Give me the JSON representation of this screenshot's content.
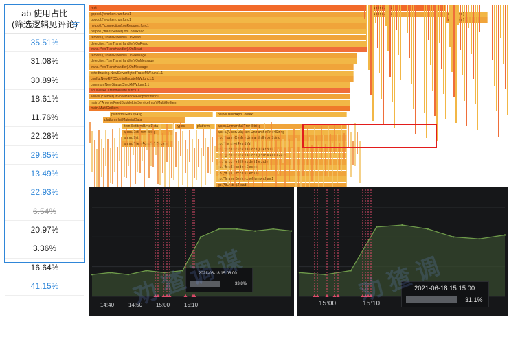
{
  "table": {
    "header_line1": "ab 使用占比",
    "header_line2": "(筛选逻辑见评论)",
    "rows": [
      {
        "value": "35.51%",
        "style": "blue"
      },
      {
        "value": "31.08%",
        "style": "normal"
      },
      {
        "value": "30.89%",
        "style": "normal"
      },
      {
        "value": "18.61%",
        "style": "normal"
      },
      {
        "value": "11.76%",
        "style": "normal"
      },
      {
        "value": "22.28%",
        "style": "normal"
      },
      {
        "value": "29.85%",
        "style": "blue"
      },
      {
        "value": "13.49%",
        "style": "blue"
      },
      {
        "value": "22.93%",
        "style": "blue"
      },
      {
        "value": "6.54%",
        "style": "strike"
      },
      {
        "value": "20.97%",
        "style": "normal"
      },
      {
        "value": "3.36%",
        "style": "normal"
      },
      {
        "value": "16.64%",
        "style": "normal"
      },
      {
        "value": "41.15%",
        "style": "blue"
      }
    ]
  },
  "flamegraph": {
    "frames": [
      "root",
      "gopool.(*worker).run.func1",
      "gopool.(*worker).run.func1",
      "netpoll.(*connection).onRequest.func1",
      "netpoll.(*transServer).onConnRead",
      "remote.(*TransPipeline).OnRead",
      "detection.(*svrTransHandler).OnRead",
      "trans.(*svrTransHandler).OnRead",
      "remote.(*TransPipeline).OnMessage",
      "detection.(*svrTransHandler).OnMessage",
      "trans.(*svrTransHandler).OnMessage",
      "bytedtracing.NewServerBytedTraceMW.func1.1",
      "config.NewRPCConfigUpdateMW.func1.1",
      "common.NewStatusCheckMW.func1.1",
      "acl.NewACLMiddleware.func1.1",
      "server.(*server).invokeHandleEndpoint.func1",
      "main.(*AmemeFeedBubbleLiteServiceImpl).MultiGetItem",
      "main.MultiGetItem",
      "platform.GetKeyAsg",
      "platform.InitMaterialData",
      "item.SetItemBaseData",
      "ajson.GetFromString",
      "ajson.Get",
      "ajson.(*ItemAdapter).Decode",
      "helper.BuildAppContext",
      "ajson.UnmarshalFromString",
      "ajson.(*JsonAdapter).UnmarshalFromString",
      "go.(*frozenConfig).UnmarshalFromString",
      "go.(*Iterator).ReadVal",
      "go.(*generalStructDecoder).Decode",
      "go.(*generalStructDecoder).decodeOneField",
      "go.(*structFieldDecoder).Decode",
      "go.(*funcDecoder).Decode",
      "go.(*mapDecoder).Decode",
      "go.(*frozenConfig).useNumber.func1",
      "go.(*Iterator).Read",
      "go.(*Iterator).ReadNumStr",
      "types",
      "platform",
      "go.(*frozenConfig).Unmarshal",
      "runtime.mcall",
      "core.(*run)"
    ]
  },
  "chart_left": {
    "time_labels": [
      "14:40",
      "14:50",
      "15:00",
      "15:10"
    ],
    "tooltip_time": "2021-06-18 15:06:00",
    "tooltip_value": "33.8%"
  },
  "chart_right": {
    "time_labels": [
      "15:00",
      "15:10"
    ],
    "tooltip_time": "2021-06-18 15:15:00",
    "tooltip_value": "31.1%"
  },
  "chart_data": [
    {
      "type": "line",
      "title": "",
      "x": [
        "14:40",
        "14:45",
        "14:50",
        "14:55",
        "15:00",
        "15:01",
        "15:03",
        "15:05",
        "15:06",
        "15:08",
        "15:10",
        "15:12"
      ],
      "series": [
        {
          "values": [
            11,
            12,
            11,
            13,
            12,
            13,
            30,
            34,
            34,
            33,
            34,
            33
          ]
        }
      ]
    },
    {
      "type": "line",
      "title": "",
      "x": [
        "14:55",
        "15:00",
        "15:02",
        "15:04",
        "15:06",
        "15:08",
        "15:10",
        "15:12",
        "15:15"
      ],
      "series": [
        {
          "values": [
            12,
            11,
            13,
            35,
            36,
            34,
            30,
            29,
            31
          ]
        }
      ]
    }
  ],
  "colors": {
    "accent": "#2f86d8",
    "highlight": "#e21c1c",
    "line": "#6e9a4a",
    "marker": "#e04b6a"
  },
  "watermark": "@稀土掘金技术社区"
}
